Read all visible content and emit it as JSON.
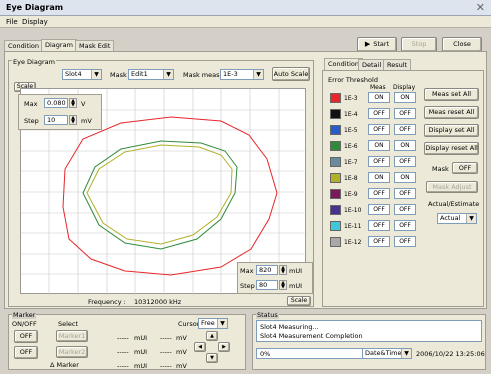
{
  "window": {
    "title": "Eye Diagram"
  },
  "menu": [
    "File",
    "Display"
  ],
  "main_tabs": [
    "Condition",
    "Diagram",
    "Mask Edit"
  ],
  "toolbar": {
    "start": "Start",
    "stop": "Stop",
    "close": "Close"
  },
  "eye_panel": {
    "group_label": "Eye Diagram",
    "slot_value": "Slot4",
    "mask_label": "Mask",
    "mask_value": "Edit1",
    "mask_meas_label": "Mask meas",
    "mask_meas_value": "1E-3",
    "auto_scale": "Auto Scale",
    "scale_label": "Scale",
    "max_label": "Max",
    "max_value": "0.080",
    "max_unit": "V",
    "step_label": "Step",
    "step_value": "10",
    "step_unit": "mV",
    "frequency_label": "Frequency :",
    "frequency_value": "10312000 kHz",
    "x_max_label": "Max",
    "x_max_value": "820",
    "x_max_unit": "mUI",
    "x_step_label": "Step",
    "x_step_value": "80",
    "x_step_unit": "mUI",
    "scale_button": "Scale"
  },
  "right_tabs": [
    "Condition",
    "Detail",
    "Result"
  ],
  "threshold": {
    "title": "Error Threshold",
    "meas_header": "Meas",
    "display_header": "Display",
    "rows": [
      {
        "label": "1E-3",
        "color": "#e8262a",
        "meas": "ON",
        "display": "ON"
      },
      {
        "label": "1E-4",
        "color": "#111111",
        "meas": "OFF",
        "display": "OFF"
      },
      {
        "label": "1E-5",
        "color": "#2a5dc8",
        "meas": "OFF",
        "display": "OFF"
      },
      {
        "label": "1E-6",
        "color": "#2f8a3a",
        "meas": "ON",
        "display": "ON"
      },
      {
        "label": "1E-7",
        "color": "#6a8a9e",
        "meas": "OFF",
        "display": "OFF"
      },
      {
        "label": "1E-8",
        "color": "#b0b02a",
        "meas": "ON",
        "display": "ON"
      },
      {
        "label": "1E-9",
        "color": "#7a1a5a",
        "meas": "OFF",
        "display": "OFF"
      },
      {
        "label": "1E-10",
        "color": "#4a3090",
        "meas": "OFF",
        "display": "OFF"
      },
      {
        "label": "1E-11",
        "color": "#40c8d8",
        "meas": "OFF",
        "display": "OFF"
      },
      {
        "label": "1E-12",
        "color": "#a8a8a8",
        "meas": "OFF",
        "display": "OFF"
      }
    ]
  },
  "right_buttons": {
    "meas_set_all": "Meas set All",
    "meas_reset_all": "Meas reset All",
    "display_set_all": "Display set All",
    "display_reset_all": "Display reset All",
    "mask_label": "Mask",
    "mask_value": "OFF",
    "mask_adjust": "Mask Adjust",
    "actual_estimate_label": "Actual/Estimate",
    "actual_value": "Actual"
  },
  "marker": {
    "group_label": "Marker",
    "onoff_label": "ON/OFF",
    "select_label": "Select",
    "off1": "OFF",
    "off2": "OFF",
    "marker1": "Marker1",
    "marker2": "Marker2",
    "delta_marker": "Δ Marker",
    "cursor_label": "Cursor",
    "cursor_value": "Free",
    "readouts": [
      {
        "value": "-----",
        "unit": "mUI"
      },
      {
        "value": "-----",
        "unit": "mV"
      },
      {
        "value": "-----",
        "unit": "mUI"
      },
      {
        "value": "-----",
        "unit": "mV"
      },
      {
        "value": "-----",
        "unit": "mUI"
      },
      {
        "value": "-----",
        "unit": "mV"
      }
    ]
  },
  "status": {
    "group_label": "Status",
    "lines": [
      "Slot4 Measuring...",
      "Slot4 Measurement Completion"
    ],
    "progress_text": "0%",
    "progress": 0,
    "datetime_label": "Date&Time",
    "datetime_value": "2006/10/22 13:25:06"
  }
}
